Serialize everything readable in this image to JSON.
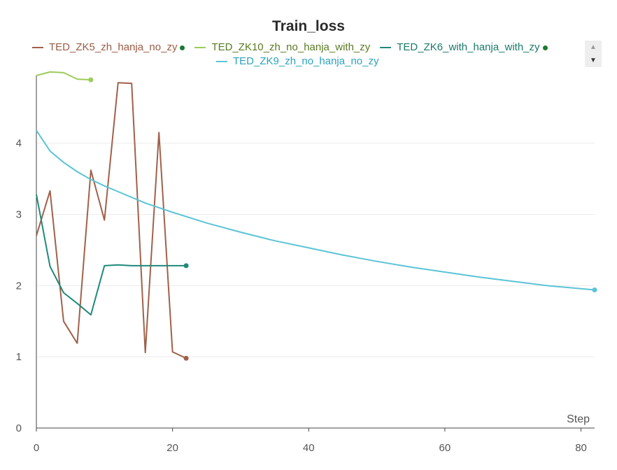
{
  "chart_data": {
    "type": "line",
    "title": "Train_loss",
    "xlabel": "Step",
    "ylabel": "",
    "xlim": [
      0,
      82
    ],
    "ylim": [
      0,
      4.95
    ],
    "xticks": [
      0,
      20,
      40,
      60,
      80
    ],
    "yticks": [
      0,
      1,
      2,
      3,
      4
    ],
    "grid": "horizontal",
    "legend_position": "top",
    "series": [
      {
        "name": "TED_ZK5_zh_hanja_no_zy",
        "color": "#a0614a",
        "text_color": "#9b5b45",
        "status_dot": true,
        "x": [
          0,
          2,
          4,
          6,
          8,
          10,
          12,
          14,
          16,
          18,
          20,
          22
        ],
        "y": [
          2.7,
          3.33,
          1.5,
          1.19,
          3.62,
          2.92,
          4.85,
          4.84,
          1.06,
          4.15,
          1.07,
          0.98
        ]
      },
      {
        "name": "TED_ZK10_zh_no_hanja_with_zy",
        "color": "#9ccc5a",
        "text_color": "#5a7a22",
        "status_dot": false,
        "x": [
          0,
          2,
          4,
          6,
          8
        ],
        "y": [
          4.95,
          5.0,
          4.99,
          4.9,
          4.89
        ]
      },
      {
        "name": "TED_ZK6_with_hanja_with_zy",
        "color": "#1f8a7a",
        "text_color": "#1a7a6a",
        "status_dot": true,
        "x": [
          0,
          2,
          4,
          6,
          8,
          10,
          12,
          14,
          16,
          18,
          20,
          22
        ],
        "y": [
          3.28,
          2.27,
          1.9,
          1.75,
          1.59,
          2.28,
          2.29,
          2.28,
          2.28,
          2.28,
          2.28,
          2.28
        ]
      },
      {
        "name": "TED_ZK9_zh_no_hanja_no_zy",
        "color": "#5bc4d6",
        "text_color": "#2aa3bd",
        "status_dot": false,
        "x": [
          0,
          2,
          4,
          6,
          8,
          10,
          12,
          16,
          20,
          25,
          30,
          35,
          40,
          45,
          50,
          55,
          60,
          65,
          70,
          75,
          82
        ],
        "y": [
          4.18,
          3.89,
          3.73,
          3.6,
          3.49,
          3.4,
          3.32,
          3.16,
          3.03,
          2.88,
          2.75,
          2.63,
          2.53,
          2.43,
          2.34,
          2.26,
          2.19,
          2.12,
          2.06,
          2.0,
          1.94
        ]
      }
    ]
  },
  "legend": {
    "scroll_up_icon": "▲",
    "scroll_down_icon": "▼"
  }
}
